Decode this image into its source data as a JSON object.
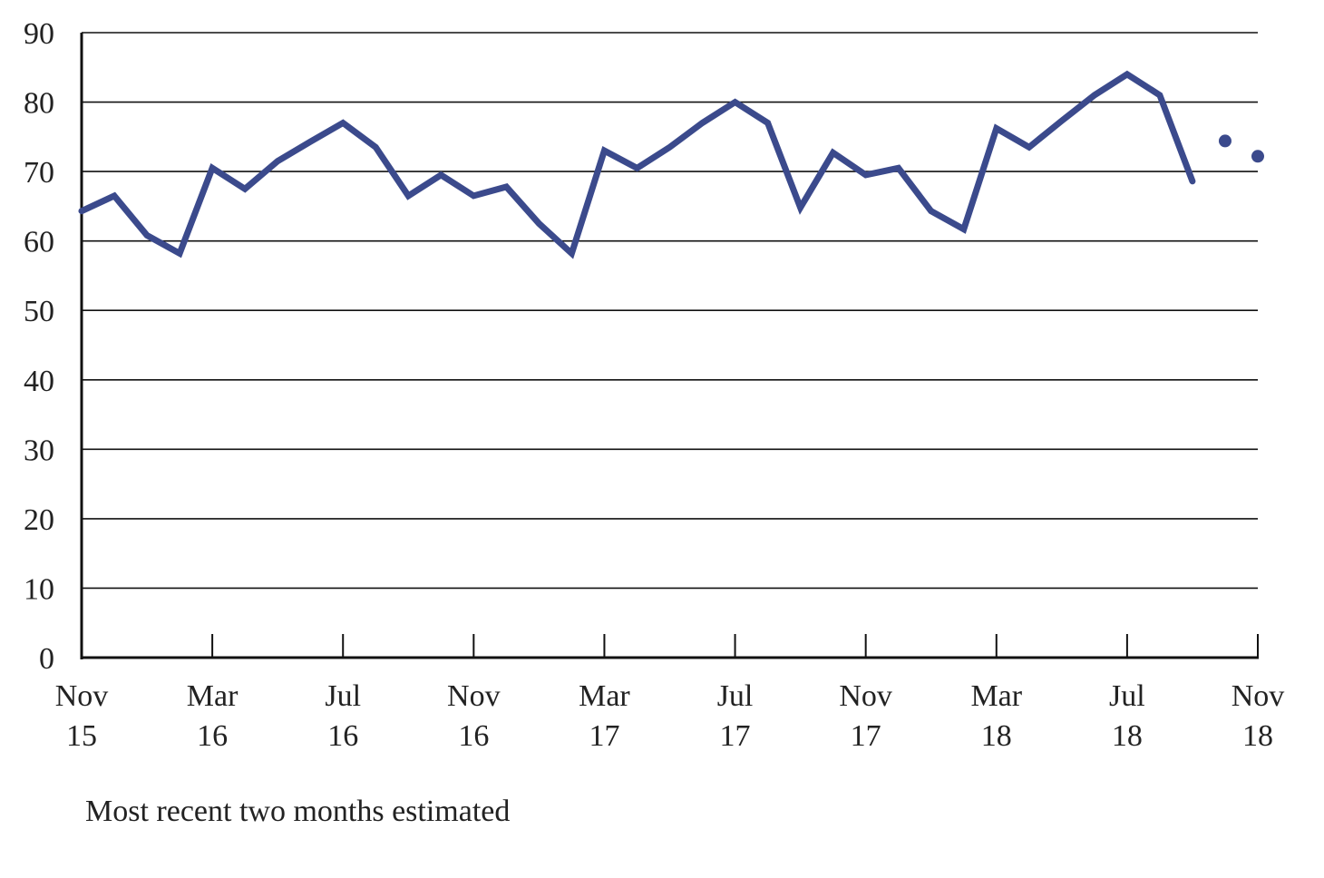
{
  "chart_data": {
    "type": "line",
    "title": "",
    "xlabel": "",
    "ylabel": "",
    "ylim": [
      0,
      90
    ],
    "yticks": [
      "0",
      "10",
      "20",
      "30",
      "40",
      "50",
      "60",
      "70",
      "80",
      "90"
    ],
    "xticks": [
      {
        "month": "Nov",
        "year": "15"
      },
      {
        "month": "Mar",
        "year": "16"
      },
      {
        "month": "Jul",
        "year": "16"
      },
      {
        "month": "Nov",
        "year": "16"
      },
      {
        "month": "Mar",
        "year": "17"
      },
      {
        "month": "Jul",
        "year": "17"
      },
      {
        "month": "Nov",
        "year": "17"
      },
      {
        "month": "Mar",
        "year": "18"
      },
      {
        "month": "Jul",
        "year": "18"
      },
      {
        "month": "Nov",
        "year": "18"
      }
    ],
    "grid": true,
    "series": [
      {
        "color": "#3b4a8c",
        "x": [
          "Nov 15",
          "Dec 15",
          "Jan 16",
          "Feb 16",
          "Mar 16",
          "Apr 16",
          "May 16",
          "Jun 16",
          "Jul 16",
          "Aug 16",
          "Sep 16",
          "Oct 16",
          "Nov 16",
          "Dec 16",
          "Jan 17",
          "Feb 17",
          "Mar 17",
          "Apr 17",
          "May 17",
          "Jun 17",
          "Jul 17",
          "Aug 17",
          "Sep 17",
          "Oct 17",
          "Nov 17",
          "Dec 17",
          "Jan 18",
          "Feb 18",
          "Mar 18",
          "Apr 18",
          "May 18",
          "Jun 18",
          "Jul 18",
          "Aug 18",
          "Sep 18"
        ],
        "values": [
          64.3,
          66.5,
          60.8,
          58.2,
          70.5,
          67.5,
          71.5,
          74.3,
          77.0,
          73.5,
          66.5,
          69.5,
          66.5,
          67.8,
          62.5,
          58.2,
          73.0,
          70.5,
          73.5,
          77.0,
          80.0,
          77.0,
          64.8,
          72.7,
          69.5,
          70.5,
          64.3,
          61.7,
          76.2,
          73.5,
          77.3,
          81.0,
          84.0,
          81.0,
          68.6
        ]
      },
      {
        "color": "#3b4a8c",
        "style": "points",
        "x": [
          "Oct 18",
          "Nov 18"
        ],
        "values": [
          74.4,
          72.2
        ]
      }
    ]
  },
  "footnote": "Most recent two months estimated"
}
